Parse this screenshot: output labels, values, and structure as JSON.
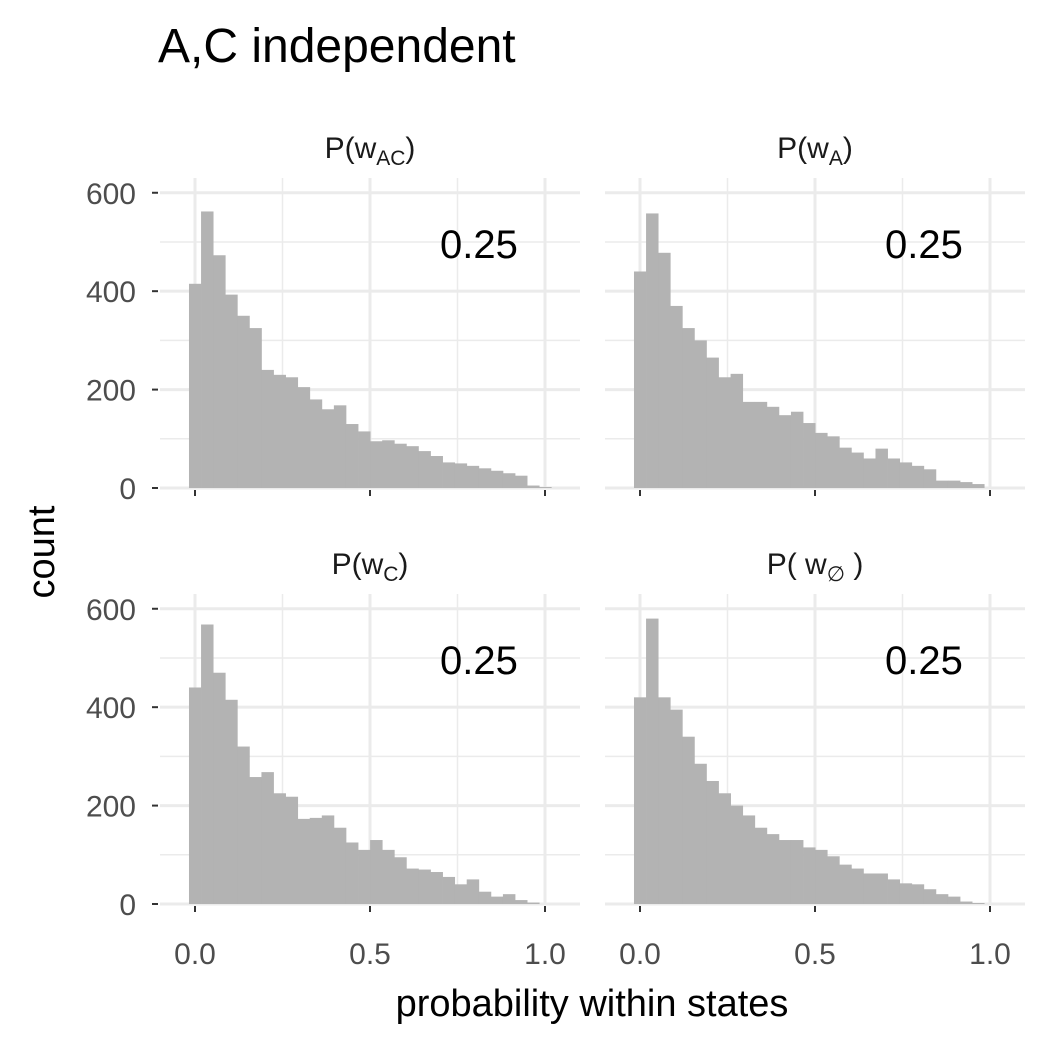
{
  "chart_data": {
    "type": "bar",
    "title": "A,C independent",
    "xlabel": "probability within states",
    "ylabel": "count",
    "xlim": [
      -0.1,
      1.1
    ],
    "ylim": [
      0,
      600
    ],
    "x_ticks": [
      0.0,
      0.5,
      1.0
    ],
    "x_tick_labels": [
      "0.0",
      "0.5",
      "1.0"
    ],
    "y_ticks": [
      0,
      200,
      400,
      600
    ],
    "y_tick_labels": [
      "0",
      "200",
      "400",
      "600"
    ],
    "bin_width": 0.0345,
    "bin_start": -0.0172,
    "grid": true,
    "bar_color": "#b3b3b3",
    "grid_color": "#ebebeb",
    "panels": [
      {
        "label_main": "P(w",
        "label_sub": "AC",
        "label_end": ")",
        "annotation": "0.25",
        "values": [
          415,
          562,
          473,
          393,
          350,
          325,
          240,
          230,
          225,
          205,
          180,
          160,
          168,
          130,
          115,
          95,
          97,
          90,
          85,
          75,
          65,
          52,
          50,
          45,
          40,
          35,
          30,
          25,
          5,
          2
        ]
      },
      {
        "label_main": "P(w",
        "label_sub": "A",
        "label_end": ")",
        "annotation": "0.25",
        "values": [
          440,
          558,
          478,
          370,
          325,
          300,
          265,
          225,
          232,
          175,
          175,
          165,
          148,
          155,
          132,
          112,
          105,
          82,
          72,
          60,
          80,
          60,
          52,
          45,
          38,
          15,
          15,
          12,
          8,
          0
        ]
      },
      {
        "label_main": "P(w",
        "label_sub": "C",
        "label_end": ")",
        "annotation": "0.25",
        "values": [
          440,
          568,
          470,
          415,
          320,
          258,
          268,
          225,
          218,
          173,
          175,
          180,
          155,
          125,
          110,
          130,
          110,
          95,
          72,
          70,
          65,
          55,
          40,
          50,
          25,
          15,
          20,
          8,
          3,
          0
        ]
      },
      {
        "label_main": "P( w",
        "label_sub": "∅",
        "label_end": " )",
        "annotation": "0.25",
        "values": [
          420,
          580,
          420,
          395,
          340,
          285,
          250,
          225,
          200,
          180,
          155,
          142,
          130,
          130,
          115,
          110,
          97,
          80,
          72,
          62,
          62,
          50,
          42,
          40,
          30,
          20,
          15,
          5,
          2,
          0
        ]
      }
    ]
  }
}
